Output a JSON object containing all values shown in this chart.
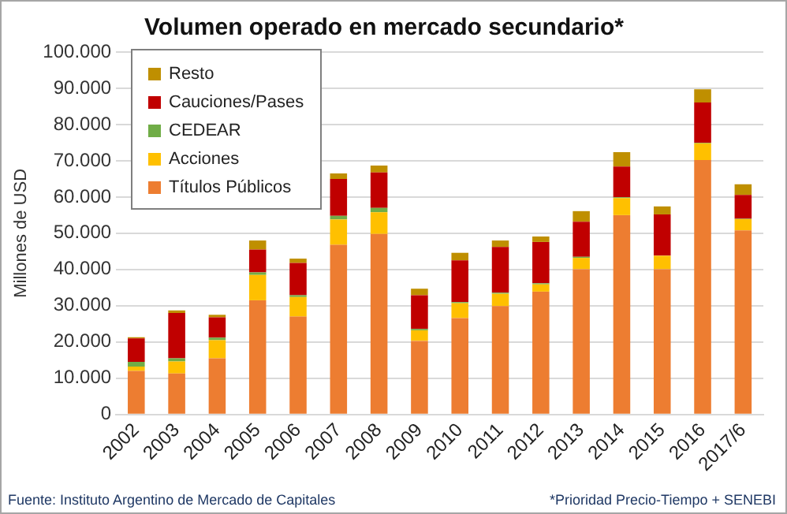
{
  "chart_data": {
    "type": "bar",
    "title": "Volumen operado en mercado secundario*",
    "ylabel": "Millones de USD",
    "categories": [
      "2002",
      "2003",
      "2004",
      "2005",
      "2006",
      "2007",
      "2008",
      "2009",
      "2010",
      "2011",
      "2012",
      "2013",
      "2014",
      "2015",
      "2016",
      "2017/6"
    ],
    "stacked": true,
    "legend": "top left",
    "grid": "y",
    "ylim": [
      0,
      100000
    ],
    "yticks": [
      {
        "value": 0,
        "label": "0"
      },
      {
        "value": 10000,
        "label": "10.000"
      },
      {
        "value": 20000,
        "label": "20.000"
      },
      {
        "value": 30000,
        "label": "30.000"
      },
      {
        "value": 40000,
        "label": "40.000"
      },
      {
        "value": 50000,
        "label": "50.000"
      },
      {
        "value": 60000,
        "label": "60.000"
      },
      {
        "value": 70000,
        "label": "70.000"
      },
      {
        "value": 80000,
        "label": "80.000"
      },
      {
        "value": 90000,
        "label": "90.000"
      },
      {
        "value": 100000,
        "label": "100.000"
      }
    ],
    "series": [
      {
        "name": "Títulos Públicos",
        "color": "#ed7d31",
        "values": [
          12000,
          11300,
          15500,
          31500,
          27000,
          46800,
          49800,
          20300,
          26600,
          29900,
          33900,
          40100,
          55000,
          40100,
          70200,
          50800
        ]
      },
      {
        "name": "Acciones",
        "color": "#ffc000",
        "values": [
          1200,
          3300,
          5000,
          7000,
          5400,
          7000,
          6000,
          2900,
          4100,
          3400,
          2000,
          3100,
          4700,
          3700,
          4600,
          3100
        ]
      },
      {
        "name": "CEDEAR",
        "color": "#70ad47",
        "values": [
          1300,
          900,
          700,
          700,
          500,
          1000,
          1200,
          400,
          300,
          300,
          300,
          300,
          200,
          null,
          200,
          100
        ]
      },
      {
        "name": "Cauciones/Pases",
        "color": "#c00000",
        "values": [
          6500,
          12500,
          5600,
          6300,
          8900,
          10200,
          9800,
          9300,
          11500,
          12600,
          11400,
          9700,
          8500,
          11400,
          11100,
          6600
        ]
      },
      {
        "name": "Resto",
        "color": "#bf8f00",
        "values": [
          300,
          700,
          700,
          2500,
          1200,
          1500,
          1900,
          1800,
          2100,
          1800,
          1500,
          2900,
          4000,
          2200,
          3600,
          2900
        ]
      }
    ],
    "annotations": [
      "Fuente: Instituto Argentino de Mercado de Capitales",
      "*Prioridad Precio-Tiempo + SENEBI"
    ]
  }
}
